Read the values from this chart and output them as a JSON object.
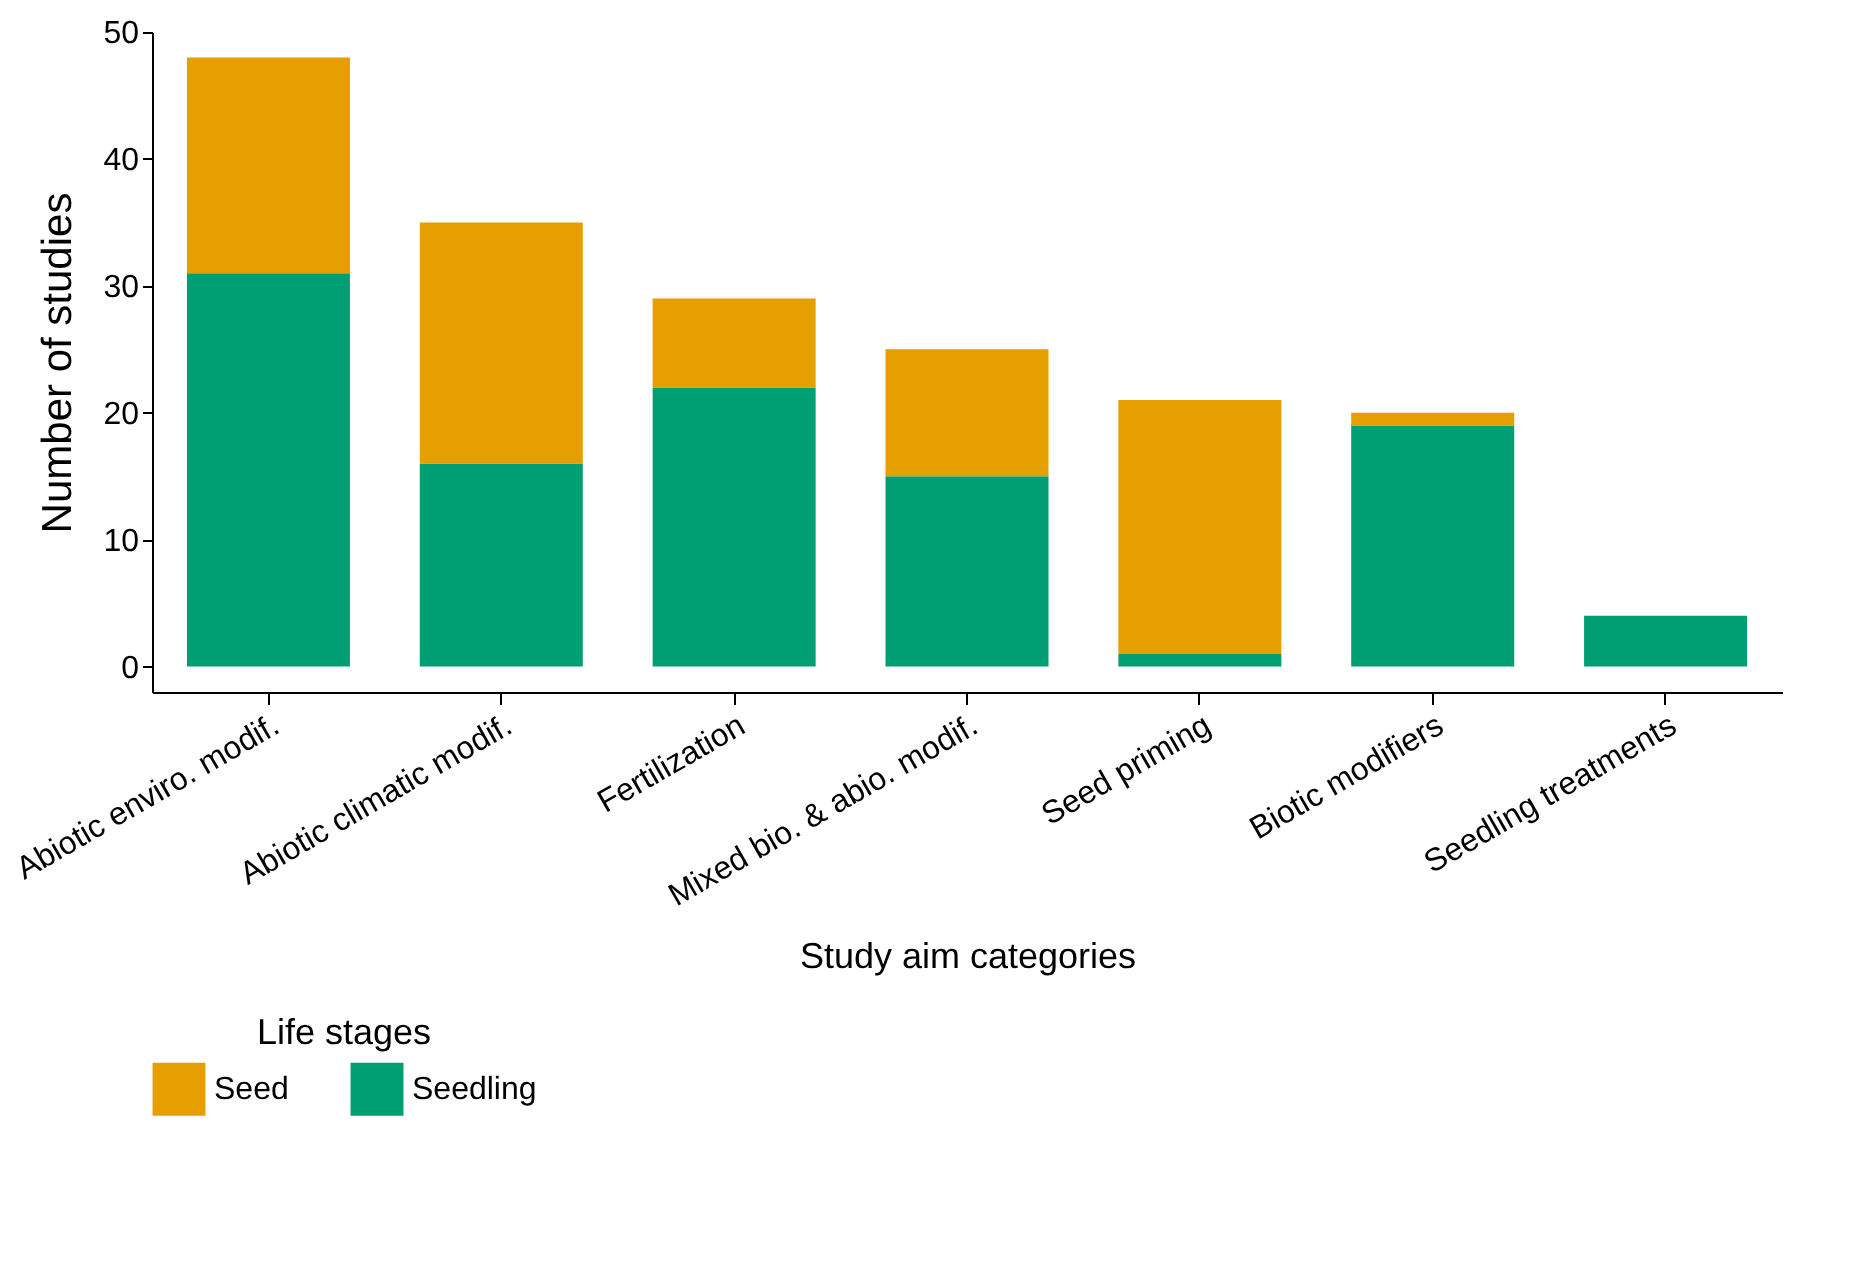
{
  "chart_data": {
    "type": "bar",
    "stacked": true,
    "xlabel": "Study aim categories",
    "ylabel": "Number of studies",
    "legend_title": "Life stages",
    "legend": "bottom",
    "grid": false,
    "categories": [
      "Abiotic enviro. modif.",
      "Abiotic climatic modif.",
      "Fertilization",
      "Mixed bio. & abio. modif.",
      "Seed priming",
      "Biotic modifiers",
      "Seedling treatments"
    ],
    "series": [
      {
        "name": "Seedling",
        "color": "#009e73",
        "values": [
          31,
          16,
          22,
          15,
          1,
          19,
          4
        ]
      },
      {
        "name": "Seed",
        "color": "#e69f00",
        "values": [
          17,
          19,
          7,
          10,
          20,
          1,
          0
        ]
      }
    ],
    "ylim": [
      -2,
      50
    ],
    "yticks": [
      0,
      10,
      20,
      30,
      40,
      50
    ]
  }
}
